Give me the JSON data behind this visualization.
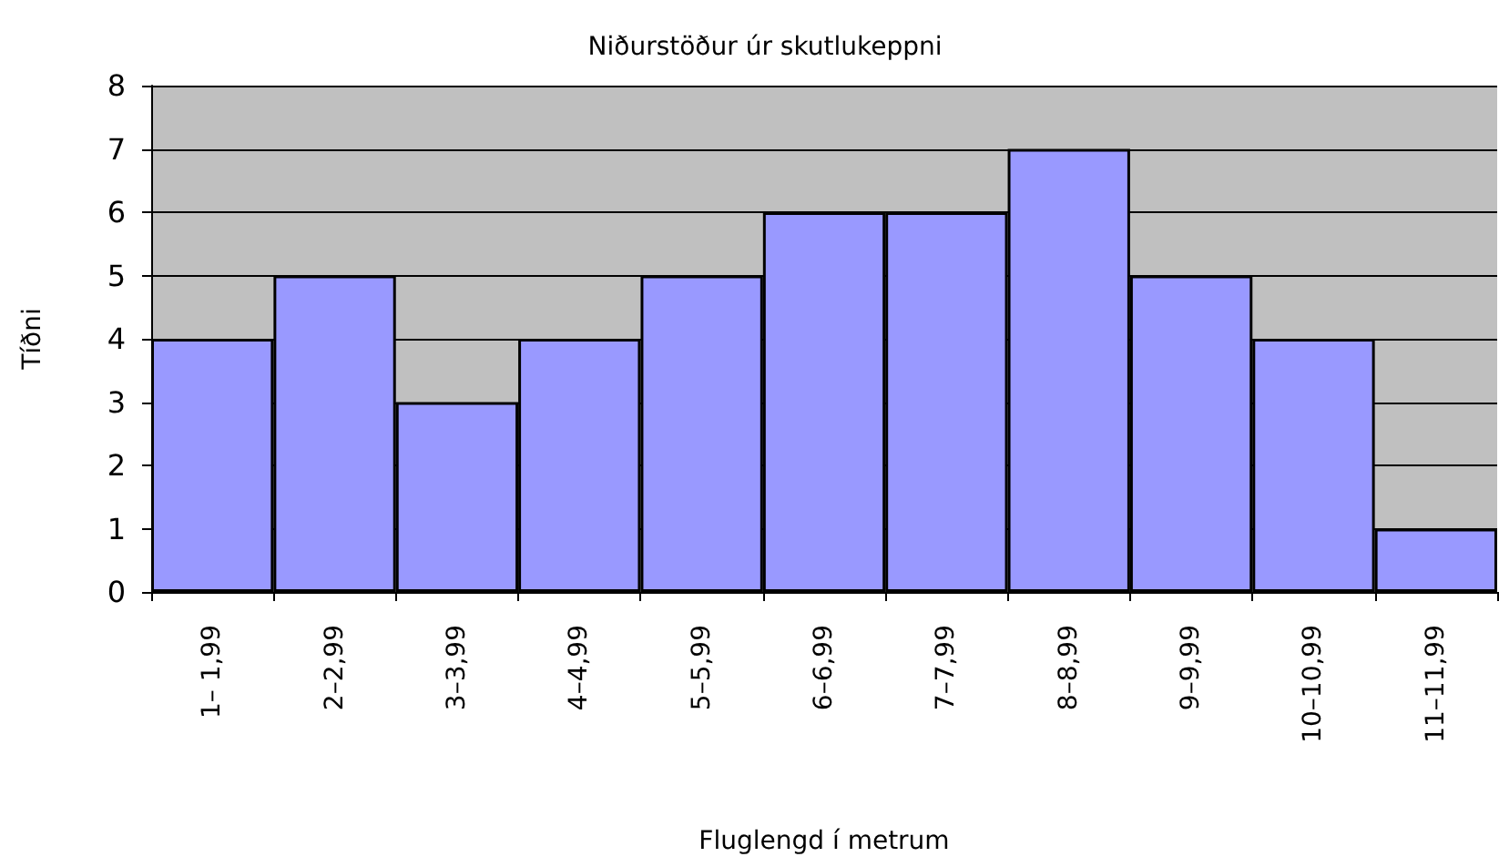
{
  "chart_data": {
    "type": "bar",
    "title": "Niðurstöður úr skutlukeppni",
    "xlabel": "Fluglengd í metrum",
    "ylabel": "Tíðni",
    "categories": [
      "1– 1,99",
      "2–2,99",
      "3–3,99",
      "4–4,99",
      "5–5,99",
      "6–6,99",
      "7–7,99",
      "8–8,99",
      "9–9,99",
      "10–10,99",
      "11–11,99"
    ],
    "values": [
      4,
      5,
      3,
      4,
      5,
      6,
      6,
      7,
      5,
      4,
      1
    ],
    "color": "#9999ff",
    "ylim": [
      0,
      8
    ],
    "yticks": [
      0,
      1,
      2,
      3,
      4,
      5,
      6,
      7,
      8
    ],
    "grid": "y"
  }
}
